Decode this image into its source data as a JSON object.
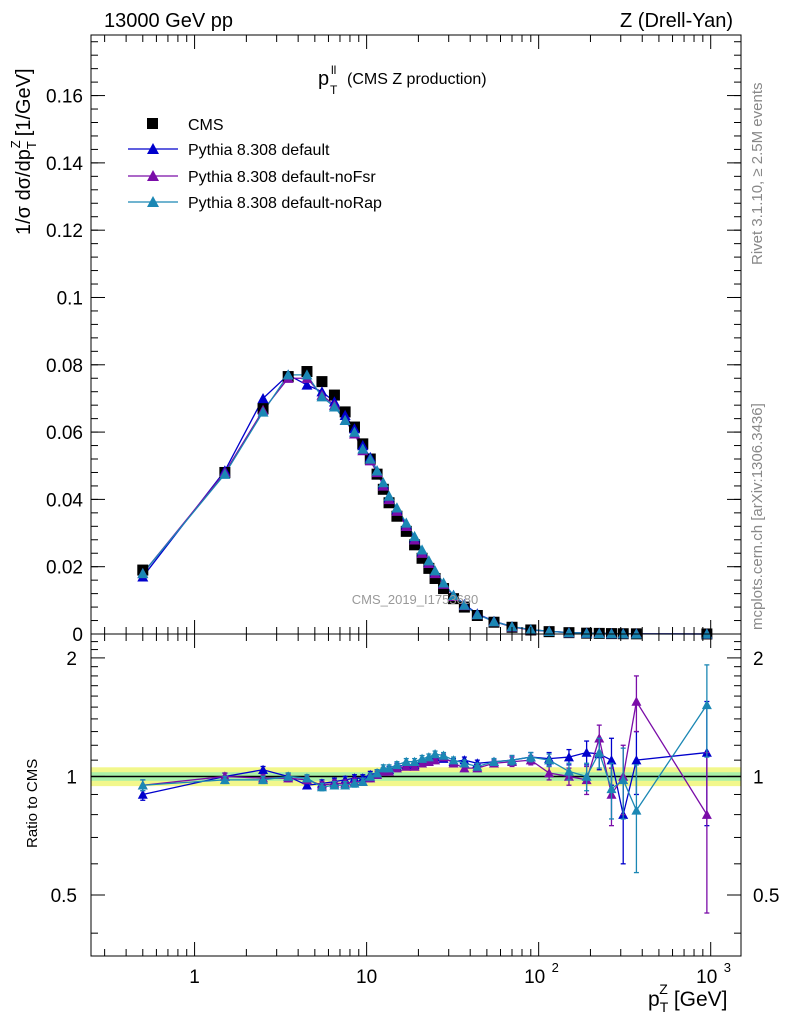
{
  "header": {
    "left": "13000 GeV pp",
    "right": "Z (Drell-Yan)"
  },
  "side": {
    "rivet": "Rivet 3.1.10, ≥ 2.5M events",
    "mcplots": "mcplots.cern.ch [arXiv:1306.3436]"
  },
  "chart_data": [
    {
      "type": "scatter",
      "panel": "main",
      "title_main": "p",
      "title_sup": "ll",
      "title_sub": "T",
      "title_rest": "(CMS Z production)",
      "watermark": "CMS_2019_I1753680",
      "ylabel": "1/σ dσ/dp",
      "ylabel_sub": "T",
      "ylabel_sup": "Z",
      "ylabel_unit": "[1/GeV]",
      "xscale": "log",
      "xlim": [
        0.25,
        1500
      ],
      "ylim": [
        0,
        0.178
      ],
      "yticks": [
        {
          "v": 0,
          "label": "0"
        },
        {
          "v": 0.02,
          "label": "0.02"
        },
        {
          "v": 0.04,
          "label": "0.04"
        },
        {
          "v": 0.06,
          "label": "0.06"
        },
        {
          "v": 0.08,
          "label": "0.08"
        },
        {
          "v": 0.1,
          "label": "0.1"
        },
        {
          "v": 0.12,
          "label": "0.12"
        },
        {
          "v": 0.14,
          "label": "0.14"
        },
        {
          "v": 0.16,
          "label": "0.16"
        }
      ],
      "legend_position": "top-left",
      "x": [
        0.5,
        1.5,
        2.5,
        3.5,
        4.5,
        5.5,
        6.5,
        7.5,
        8.5,
        9.5,
        10.5,
        11.5,
        12.5,
        13.5,
        15,
        17,
        19,
        21,
        23,
        25,
        28,
        32,
        37,
        44,
        55,
        70,
        90,
        115,
        150,
        190,
        225,
        265,
        310,
        370,
        950
      ],
      "series": [
        {
          "name": "CMS",
          "marker": "square",
          "color": "#000000",
          "values": [
            0.019,
            0.048,
            0.067,
            0.0765,
            0.078,
            0.075,
            0.071,
            0.066,
            0.0615,
            0.0565,
            0.052,
            0.0475,
            0.043,
            0.039,
            0.035,
            0.0305,
            0.0265,
            0.0225,
            0.0195,
            0.0165,
            0.0135,
            0.0105,
            0.008,
            0.0055,
            0.0035,
            0.002,
            0.0012,
            0.0007,
            0.0004,
            0.00025,
            0.00018,
            0.00012,
            8e-05,
            5e-05,
            1e-05
          ]
        },
        {
          "name": "Pythia 8.308 default",
          "marker": "triangle",
          "color": "#0000cc",
          "values": [
            0.017,
            0.0485,
            0.07,
            0.077,
            0.074,
            0.072,
            0.069,
            0.065,
            0.061,
            0.056,
            0.0525,
            0.0485,
            0.0445,
            0.0405,
            0.037,
            0.0325,
            0.0285,
            0.0245,
            0.0215,
            0.0185,
            0.015,
            0.0115,
            0.0088,
            0.006,
            0.0038,
            0.0022,
            0.0013,
            0.0008,
            0.00045,
            0.00028,
            0.0002,
            0.00013,
            9e-05,
            6e-05,
            1e-05
          ]
        },
        {
          "name": "Pythia 8.308 default-noFsr",
          "marker": "triangle",
          "color": "#7a0da8",
          "values": [
            0.018,
            0.048,
            0.0665,
            0.076,
            0.076,
            0.071,
            0.068,
            0.0635,
            0.0595,
            0.0545,
            0.0515,
            0.048,
            0.044,
            0.04,
            0.0365,
            0.032,
            0.028,
            0.024,
            0.021,
            0.018,
            0.0148,
            0.0112,
            0.0085,
            0.0058,
            0.0037,
            0.0021,
            0.0012,
            0.0008,
            0.0004,
            0.00028,
            0.00019,
            0.00012,
            8e-05,
            8e-05,
            1e-05
          ]
        },
        {
          "name": "Pythia 8.308 default-noRap",
          "marker": "triangle",
          "color": "#1b87b4",
          "values": [
            0.018,
            0.0475,
            0.066,
            0.077,
            0.077,
            0.0705,
            0.0675,
            0.0635,
            0.06,
            0.055,
            0.052,
            0.0485,
            0.045,
            0.041,
            0.0375,
            0.033,
            0.029,
            0.025,
            0.0218,
            0.0188,
            0.0152,
            0.0115,
            0.0086,
            0.0058,
            0.0037,
            0.0022,
            0.0013,
            0.0008,
            0.00042,
            0.00026,
            0.00018,
            0.00012,
            8e-05,
            4e-05,
            1e-05
          ]
        }
      ]
    },
    {
      "type": "line",
      "panel": "ratio",
      "ylabel": "Ratio to CMS",
      "xlabel_main": "p",
      "xlabel_sub": "T",
      "xlabel_sup": "Z",
      "xlabel_unit": "[GeV]",
      "xscale": "log",
      "xlim": [
        0.25,
        1500
      ],
      "ylim": [
        0.35,
        2.3
      ],
      "yticks": [
        {
          "v": 0.5,
          "label": "0.5"
        },
        {
          "v": 1,
          "label": "1"
        },
        {
          "v": 2,
          "label": "2"
        }
      ],
      "xticks": [
        {
          "v": 1,
          "label": "1"
        },
        {
          "v": 10,
          "label": "10"
        },
        {
          "v": 100,
          "label": "10",
          "exp": "2"
        },
        {
          "v": 1000,
          "label": "10",
          "exp": "3"
        }
      ],
      "band_inner": 0.025,
      "band_outer": 0.055,
      "band_inner_color": "#a8f0a8",
      "band_outer_color": "#f2f78c",
      "x": [
        0.5,
        1.5,
        2.5,
        3.5,
        4.5,
        5.5,
        6.5,
        7.5,
        8.5,
        9.5,
        10.5,
        11.5,
        12.5,
        13.5,
        15,
        17,
        19,
        21,
        23,
        25,
        28,
        32,
        37,
        44,
        55,
        70,
        90,
        115,
        150,
        190,
        225,
        265,
        310,
        370,
        950
      ],
      "series": [
        {
          "name": "Pythia 8.308 default",
          "color": "#0000cc",
          "values": [
            0.9,
            1.0,
            1.04,
            1.0,
            0.95,
            0.96,
            0.97,
            0.98,
            0.99,
            0.99,
            1.01,
            1.02,
            1.03,
            1.04,
            1.06,
            1.07,
            1.07,
            1.09,
            1.1,
            1.12,
            1.11,
            1.09,
            1.1,
            1.08,
            1.09,
            1.1,
            1.12,
            1.11,
            1.12,
            1.15,
            1.14,
            1.1,
            0.8,
            1.1,
            1.15
          ],
          "errors": [
            0.03,
            0.02,
            0.02,
            0.02,
            0.02,
            0.02,
            0.02,
            0.02,
            0.02,
            0.02,
            0.02,
            0.02,
            0.02,
            0.02,
            0.02,
            0.02,
            0.02,
            0.02,
            0.02,
            0.02,
            0.02,
            0.02,
            0.02,
            0.02,
            0.02,
            0.03,
            0.03,
            0.04,
            0.05,
            0.08,
            0.1,
            0.15,
            0.2,
            0.2,
            0.4
          ]
        },
        {
          "name": "Pythia 8.308 default-noFsr",
          "color": "#7a0da8",
          "values": [
            0.95,
            1.0,
            0.99,
            0.99,
            0.98,
            0.95,
            0.96,
            0.96,
            0.97,
            0.97,
            0.99,
            1.01,
            1.03,
            1.03,
            1.05,
            1.06,
            1.06,
            1.08,
            1.09,
            1.1,
            1.12,
            1.08,
            1.05,
            1.05,
            1.08,
            1.09,
            1.1,
            1.02,
            1.0,
            0.98,
            1.25,
            0.9,
            1.0,
            1.55,
            0.8
          ],
          "errors": [
            0.03,
            0.02,
            0.02,
            0.02,
            0.02,
            0.02,
            0.02,
            0.02,
            0.02,
            0.02,
            0.02,
            0.02,
            0.02,
            0.02,
            0.02,
            0.02,
            0.02,
            0.02,
            0.02,
            0.02,
            0.02,
            0.02,
            0.02,
            0.02,
            0.02,
            0.03,
            0.03,
            0.04,
            0.05,
            0.08,
            0.1,
            0.15,
            0.2,
            0.25,
            0.35
          ]
        },
        {
          "name": "Pythia 8.308 default-noRap",
          "color": "#1b87b4",
          "values": [
            0.95,
            0.98,
            0.98,
            1.0,
            0.99,
            0.94,
            0.95,
            0.95,
            0.96,
            0.97,
            1.0,
            1.02,
            1.05,
            1.05,
            1.07,
            1.09,
            1.09,
            1.11,
            1.12,
            1.14,
            1.13,
            1.1,
            1.08,
            1.06,
            1.09,
            1.1,
            1.12,
            1.1,
            1.03,
            1.0,
            1.15,
            0.93,
            0.98,
            0.82,
            1.52
          ],
          "errors": [
            0.03,
            0.02,
            0.02,
            0.02,
            0.02,
            0.02,
            0.02,
            0.02,
            0.02,
            0.02,
            0.02,
            0.02,
            0.02,
            0.02,
            0.02,
            0.02,
            0.02,
            0.02,
            0.02,
            0.02,
            0.02,
            0.02,
            0.02,
            0.02,
            0.02,
            0.03,
            0.03,
            0.04,
            0.05,
            0.08,
            0.1,
            0.15,
            0.2,
            0.25,
            0.4
          ]
        }
      ]
    }
  ]
}
